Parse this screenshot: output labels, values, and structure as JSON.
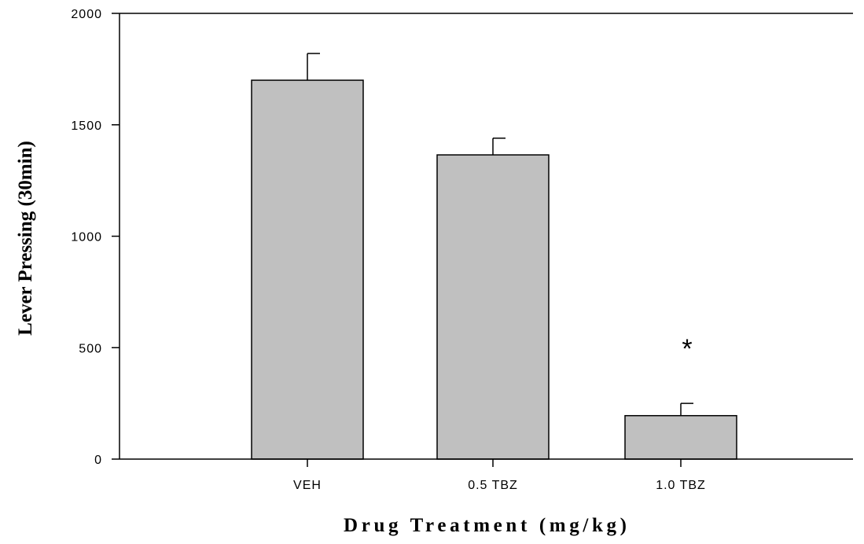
{
  "chart_data": {
    "type": "bar",
    "title": "",
    "xlabel": "Drug Treatment (mg/kg)",
    "ylabel": "Lever Pressing (30min)",
    "categories": [
      "VEH",
      "0.5 TBZ",
      "1.0 TBZ"
    ],
    "values": [
      1700,
      1365,
      195
    ],
    "error_upper": [
      120,
      75,
      55
    ],
    "ylim": [
      0,
      2000
    ],
    "yticks": [
      0,
      500,
      1000,
      1500,
      2000
    ],
    "ytick_labels": [
      "0",
      "500",
      "1000",
      "1500",
      "2000"
    ],
    "grid": false,
    "legend": "none",
    "bar_color": "#c0c0c0",
    "edge_color": "#000000",
    "annotations": [
      {
        "category": "1.0 TBZ",
        "text": "*"
      }
    ]
  }
}
